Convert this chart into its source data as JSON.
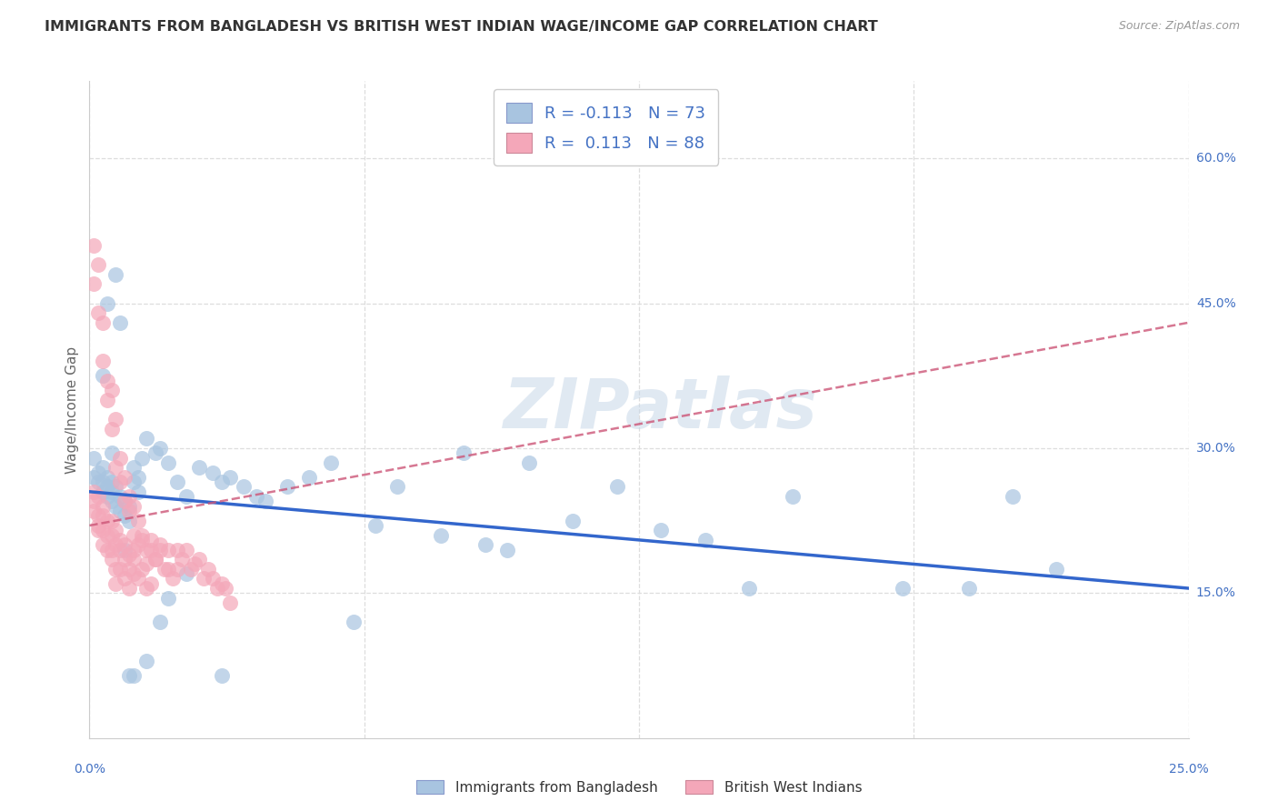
{
  "title": "IMMIGRANTS FROM BANGLADESH VS BRITISH WEST INDIAN WAGE/INCOME GAP CORRELATION CHART",
  "source": "Source: ZipAtlas.com",
  "ylabel": "Wage/Income Gap",
  "xlim": [
    0.0,
    0.25
  ],
  "ylim": [
    0.0,
    0.68
  ],
  "x_tick_labels": [
    "0.0%",
    "25.0%"
  ],
  "y_tick_vals": [
    0.15,
    0.3,
    0.45,
    0.6
  ],
  "y_tick_labels": [
    "15.0%",
    "30.0%",
    "45.0%",
    "60.0%"
  ],
  "r_bangladesh": -0.113,
  "n_bangladesh": 73,
  "r_bwi": 0.113,
  "n_bwi": 88,
  "legend_label_1": "Immigrants from Bangladesh",
  "legend_label_2": "British West Indians",
  "color_bangladesh": "#a8c4e0",
  "color_bwi": "#f4a7b9",
  "line_color_bangladesh": "#3366cc",
  "line_color_bwi": "#cc5577",
  "watermark": "ZIPatlas",
  "watermark_color": "#c8d8e8",
  "bg_color": "#ffffff",
  "grid_color": "#dddddd",
  "title_color": "#333333",
  "axis_color": "#4472c4",
  "bangladesh_x": [
    0.001,
    0.001,
    0.002,
    0.002,
    0.003,
    0.003,
    0.003,
    0.004,
    0.004,
    0.004,
    0.005,
    0.005,
    0.005,
    0.006,
    0.006,
    0.007,
    0.007,
    0.008,
    0.008,
    0.009,
    0.009,
    0.01,
    0.01,
    0.011,
    0.011,
    0.012,
    0.013,
    0.015,
    0.016,
    0.018,
    0.02,
    0.022,
    0.025,
    0.028,
    0.03,
    0.032,
    0.035,
    0.038,
    0.04,
    0.045,
    0.05,
    0.055,
    0.06,
    0.065,
    0.07,
    0.08,
    0.085,
    0.09,
    0.095,
    0.1,
    0.11,
    0.12,
    0.13,
    0.14,
    0.15,
    0.16,
    0.185,
    0.2,
    0.21,
    0.22,
    0.003,
    0.004,
    0.005,
    0.006,
    0.007,
    0.008,
    0.009,
    0.01,
    0.03,
    0.022,
    0.018,
    0.016,
    0.013
  ],
  "bangladesh_y": [
    0.27,
    0.29,
    0.265,
    0.275,
    0.255,
    0.265,
    0.28,
    0.25,
    0.26,
    0.27,
    0.245,
    0.255,
    0.265,
    0.24,
    0.26,
    0.235,
    0.25,
    0.23,
    0.245,
    0.225,
    0.24,
    0.265,
    0.28,
    0.27,
    0.255,
    0.29,
    0.31,
    0.295,
    0.3,
    0.285,
    0.265,
    0.25,
    0.28,
    0.275,
    0.265,
    0.27,
    0.26,
    0.25,
    0.245,
    0.26,
    0.27,
    0.285,
    0.12,
    0.22,
    0.26,
    0.21,
    0.295,
    0.2,
    0.195,
    0.285,
    0.225,
    0.26,
    0.215,
    0.205,
    0.155,
    0.25,
    0.155,
    0.155,
    0.25,
    0.175,
    0.375,
    0.45,
    0.295,
    0.48,
    0.43,
    0.195,
    0.065,
    0.065,
    0.065,
    0.17,
    0.145,
    0.12,
    0.08
  ],
  "bwi_x": [
    0.001,
    0.001,
    0.001,
    0.002,
    0.002,
    0.002,
    0.002,
    0.003,
    0.003,
    0.003,
    0.003,
    0.004,
    0.004,
    0.004,
    0.005,
    0.005,
    0.005,
    0.005,
    0.006,
    0.006,
    0.006,
    0.006,
    0.007,
    0.007,
    0.007,
    0.008,
    0.008,
    0.008,
    0.009,
    0.009,
    0.009,
    0.01,
    0.01,
    0.01,
    0.011,
    0.011,
    0.012,
    0.012,
    0.013,
    0.013,
    0.014,
    0.014,
    0.015,
    0.016,
    0.017,
    0.018,
    0.019,
    0.02,
    0.021,
    0.022,
    0.023,
    0.024,
    0.025,
    0.026,
    0.027,
    0.028,
    0.029,
    0.03,
    0.031,
    0.032,
    0.001,
    0.001,
    0.002,
    0.002,
    0.003,
    0.003,
    0.004,
    0.004,
    0.005,
    0.005,
    0.006,
    0.006,
    0.007,
    0.007,
    0.008,
    0.008,
    0.009,
    0.009,
    0.01,
    0.01,
    0.011,
    0.012,
    0.013,
    0.014,
    0.015,
    0.016,
    0.018,
    0.02
  ],
  "bwi_y": [
    0.235,
    0.245,
    0.255,
    0.22,
    0.23,
    0.25,
    0.215,
    0.2,
    0.215,
    0.23,
    0.24,
    0.195,
    0.21,
    0.225,
    0.195,
    0.21,
    0.225,
    0.185,
    0.2,
    0.215,
    0.175,
    0.16,
    0.195,
    0.205,
    0.175,
    0.185,
    0.2,
    0.165,
    0.175,
    0.19,
    0.155,
    0.17,
    0.185,
    0.195,
    0.165,
    0.2,
    0.175,
    0.205,
    0.18,
    0.155,
    0.195,
    0.16,
    0.185,
    0.2,
    0.175,
    0.195,
    0.165,
    0.195,
    0.185,
    0.195,
    0.175,
    0.18,
    0.185,
    0.165,
    0.175,
    0.165,
    0.155,
    0.16,
    0.155,
    0.14,
    0.51,
    0.47,
    0.49,
    0.44,
    0.43,
    0.39,
    0.37,
    0.35,
    0.36,
    0.32,
    0.33,
    0.28,
    0.29,
    0.265,
    0.27,
    0.245,
    0.25,
    0.235,
    0.24,
    0.21,
    0.225,
    0.21,
    0.195,
    0.205,
    0.185,
    0.195,
    0.175,
    0.175
  ]
}
